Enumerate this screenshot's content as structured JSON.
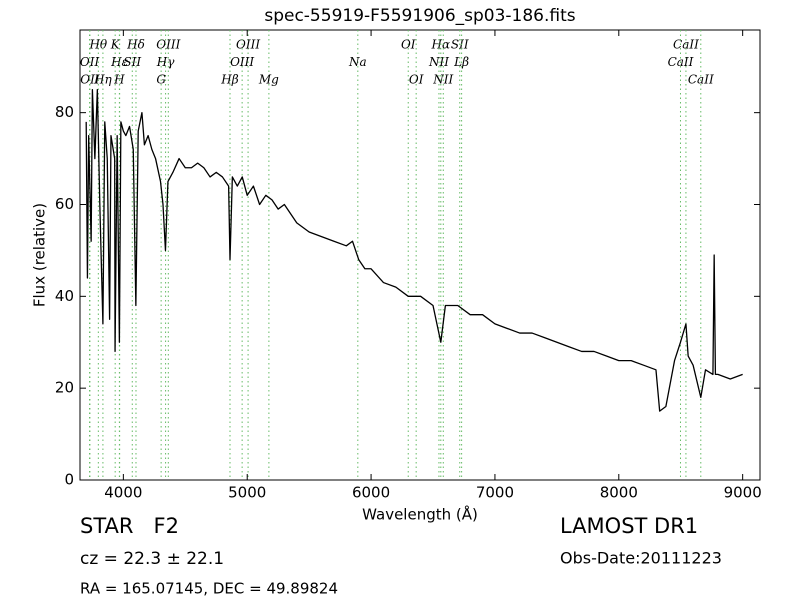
{
  "chart_data": {
    "type": "line",
    "title": "spec-55919-F5591906_sp03-186.fits",
    "xlabel": "Wavelength (Å)",
    "ylabel": "Flux (relative)",
    "xlim": [
      3650,
      9140
    ],
    "ylim": [
      0,
      98
    ],
    "xticks": [
      4000,
      5000,
      6000,
      7000,
      8000,
      9000
    ],
    "yticks": [
      0,
      20,
      40,
      60,
      80
    ],
    "color": "#000000",
    "line_color": "#66bb66",
    "x": [
      3700,
      3710,
      3720,
      3740,
      3750,
      3770,
      3790,
      3810,
      3835,
      3850,
      3870,
      3889,
      3900,
      3930,
      3933,
      3950,
      3968,
      3980,
      4000,
      4020,
      4050,
      4080,
      4101,
      4120,
      4150,
      4170,
      4200,
      4230,
      4260,
      4300,
      4320,
      4340,
      4360,
      4400,
      4450,
      4500,
      4550,
      4600,
      4650,
      4700,
      4750,
      4800,
      4850,
      4861,
      4880,
      4920,
      4960,
      5000,
      5050,
      5100,
      5150,
      5200,
      5250,
      5300,
      5400,
      5500,
      5600,
      5700,
      5800,
      5850,
      5900,
      5950,
      6000,
      6100,
      6200,
      6300,
      6400,
      6500,
      6563,
      6600,
      6700,
      6800,
      6900,
      7000,
      7100,
      7200,
      7300,
      7400,
      7500,
      7600,
      7700,
      7800,
      7900,
      8000,
      8100,
      8200,
      8300,
      8330,
      8380,
      8450,
      8498,
      8542,
      8560,
      8600,
      8662,
      8700,
      8760,
      8770,
      8780,
      8800,
      8900,
      9000
    ],
    "values": [
      78,
      44,
      75,
      52,
      85,
      70,
      85,
      60,
      34,
      78,
      70,
      35,
      75,
      70,
      28,
      75,
      30,
      78,
      76,
      75,
      77,
      72,
      38,
      76,
      80,
      73,
      75,
      72,
      70,
      65,
      60,
      50,
      65,
      67,
      70,
      68,
      68,
      69,
      68,
      66,
      67,
      66,
      64,
      48,
      66,
      64,
      66,
      62,
      64,
      60,
      62,
      61,
      59,
      60,
      56,
      54,
      53,
      52,
      51,
      52,
      48,
      46,
      46,
      43,
      42,
      40,
      40,
      38,
      30,
      38,
      38,
      36,
      36,
      34,
      33,
      32,
      32,
      31,
      30,
      29,
      28,
      28,
      27,
      26,
      26,
      25,
      24,
      15,
      16,
      26,
      30,
      34,
      27,
      25,
      18,
      24,
      23,
      49,
      23,
      23,
      22,
      23
    ],
    "annotations": [
      {
        "label": "Hθ",
        "x": 3798
      },
      {
        "label": "OII",
        "x": 3727
      },
      {
        "label": "OII",
        "x": 3730
      },
      {
        "label": "K",
        "x": 3934
      },
      {
        "label": "Hε",
        "x": 3970
      },
      {
        "label": "Hη",
        "x": 3835
      },
      {
        "label": "Hδ",
        "x": 4102
      },
      {
        "label": "SII",
        "x": 4072
      },
      {
        "label": "H",
        "x": 3968
      },
      {
        "label": "OIII",
        "x": 4363
      },
      {
        "label": "Hγ",
        "x": 4341
      },
      {
        "label": "G",
        "x": 4305
      },
      {
        "label": "OIII",
        "x": 5007
      },
      {
        "label": "OIII",
        "x": 4959
      },
      {
        "label": "Hβ",
        "x": 4861
      },
      {
        "label": "OI",
        "x": 6300
      },
      {
        "label": "Na",
        "x": 5893
      },
      {
        "label": "Mg",
        "x": 5175
      },
      {
        "label": "Hα",
        "x": 6563
      },
      {
        "label": "NII",
        "x": 6548
      },
      {
        "label": "OI",
        "x": 6364
      },
      {
        "label": "SII",
        "x": 6716
      },
      {
        "label": "Lβ",
        "x": 6731
      },
      {
        "label": "NII",
        "x": 6583
      },
      {
        "label": "CaII",
        "x": 8542
      },
      {
        "label": "CaII",
        "x": 8498
      },
      {
        "label": "CaII",
        "x": 8662
      }
    ],
    "info_left": [
      "STAR   F2",
      "cz = 22.3 ± 22.1",
      "RA = 165.07145, DEC = 49.89824"
    ],
    "info_right": [
      "LAMOST DR1",
      "Obs-Date:20111223"
    ]
  }
}
